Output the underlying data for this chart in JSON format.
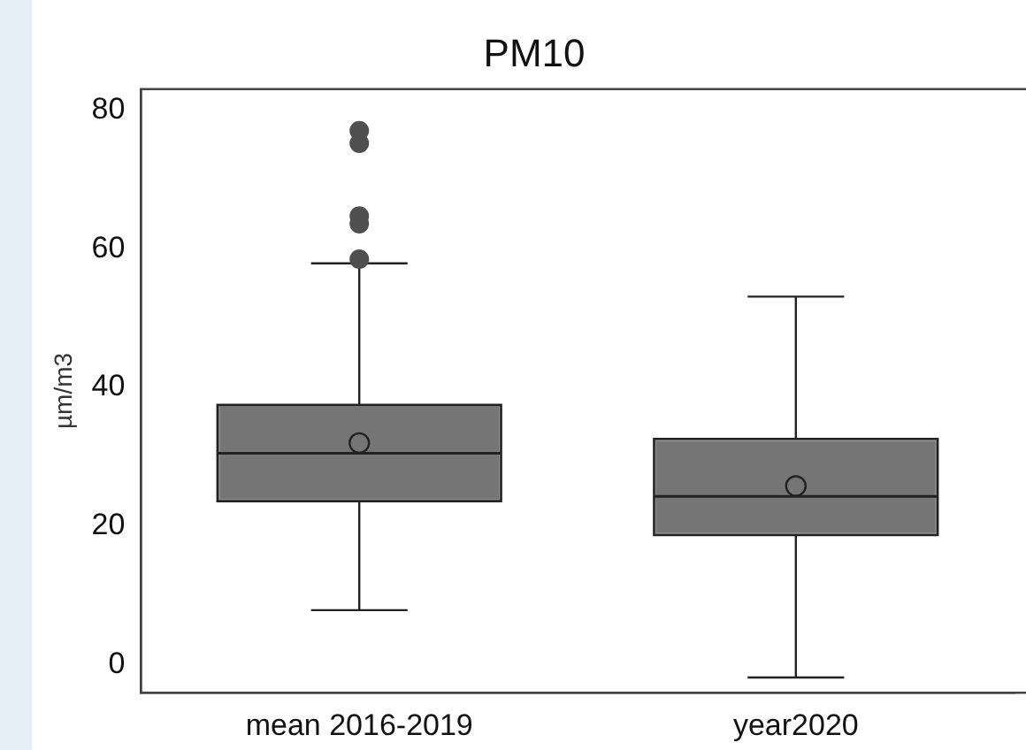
{
  "chart_data": {
    "type": "box",
    "title": "PM10",
    "ylabel": "µm/m3",
    "categories": [
      "mean 2016-2019",
      "year2020"
    ],
    "series": [
      {
        "color": "#757575",
        "boxes": [
          {
            "low": 7.9,
            "q1": 23.6,
            "median": 30.5,
            "q3": 37.5,
            "high": 57.9,
            "mean": 32.0,
            "outliers": [
              58.5,
              63.6,
              64.7,
              75.2,
              77.0
            ]
          },
          {
            "low": -1.8,
            "q1": 18.7,
            "median": 24.3,
            "q3": 32.6,
            "high": 53.1,
            "mean": 25.8
          }
        ]
      }
    ],
    "ylim": [
      -4,
      83
    ],
    "yticks": [
      0,
      20,
      40,
      60,
      80
    ],
    "grid": false,
    "legend": false
  }
}
